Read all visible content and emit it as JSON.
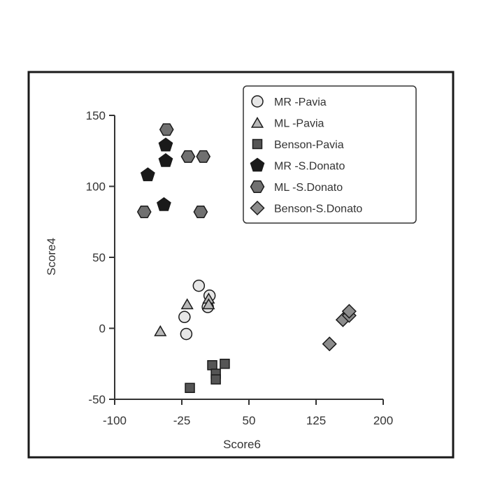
{
  "chart_data": {
    "type": "scatter",
    "xlabel": "Score6",
    "ylabel": "Score4",
    "xlim": [
      -100,
      200
    ],
    "ylim": [
      -50,
      150
    ],
    "x_ticks": [
      -100,
      -25,
      50,
      125,
      200
    ],
    "y_ticks": [
      -50,
      0,
      50,
      100,
      150
    ],
    "grid": false,
    "legend_position": "top-right",
    "series": [
      {
        "name": "MR -Pavia",
        "marker": "circle",
        "fill": "#e6e6e6",
        "x": [
          -22,
          -20,
          -6,
          4,
          6
        ],
        "y": [
          8,
          -4,
          30,
          15,
          23
        ]
      },
      {
        "name": "ML -Pavia",
        "marker": "triangle",
        "fill": "#b8b8b8",
        "x": [
          -49,
          -19,
          5,
          5
        ],
        "y": [
          -2,
          17,
          21,
          17
        ]
      },
      {
        "name": "Benson-Pavia",
        "marker": "square",
        "fill": "#555555",
        "x": [
          -16,
          9,
          13,
          13,
          23
        ],
        "y": [
          -42,
          -26,
          -32,
          -36,
          -25
        ]
      },
      {
        "name": "MR -S.Donato",
        "marker": "pentagon",
        "fill": "#1a1a1a",
        "x": [
          -63,
          -45,
          -43,
          -43
        ],
        "y": [
          108,
          87,
          118,
          129
        ]
      },
      {
        "name": "ML -S.Donato",
        "marker": "hexagon",
        "fill": "#707070",
        "x": [
          -67,
          -42,
          -18,
          -4,
          -1
        ],
        "y": [
          82,
          140,
          121,
          82,
          121
        ]
      },
      {
        "name": "Benson-S.Donato",
        "marker": "diamond",
        "fill": "#8c8c8c",
        "x": [
          140,
          155,
          162,
          162
        ],
        "y": [
          -11,
          6,
          9,
          12
        ]
      }
    ]
  }
}
